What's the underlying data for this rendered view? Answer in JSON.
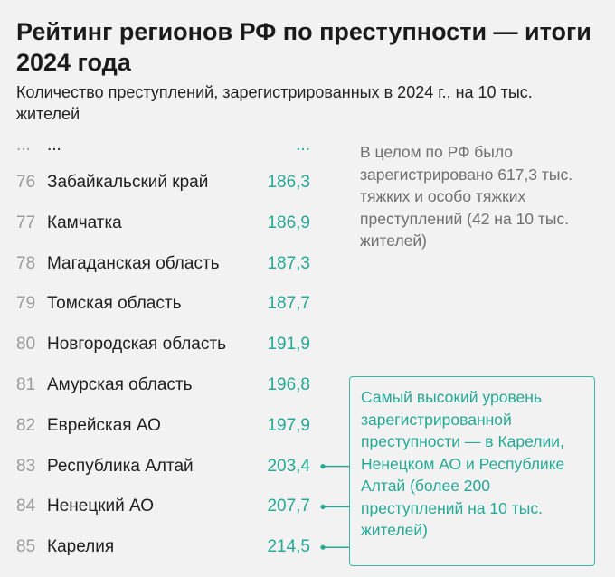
{
  "title": "Рейтинг регионов РФ по преступности — итоги 2024 года",
  "subtitle": "Количество преступлений, зарегистрированных в 2024 г., на 10 тыс. жителей",
  "ellipsis": {
    "rank": "...",
    "region": "...",
    "value": "..."
  },
  "note": "В целом по РФ было зарегистрировано 617,3 тыс. тяжких и особо тяжких преступлений (42 на 10 тыс. жителей)",
  "callout": "Самый высокий уровень зарегистрированной преступности — в Карелии, Ненецком АО и Республике Алтай (более 200 преступлений на 10 тыс. жителей)",
  "colors": {
    "accent": "#25a894",
    "rank": "#9a9a9a",
    "background": "#f2f2f2"
  },
  "chart_data": {
    "type": "table",
    "title": "Рейтинг регионов РФ по преступности — итоги 2024 года",
    "subtitle": "Количество преступлений, зарегистрированных в 2024 г., на 10 тыс. жителей",
    "rows": [
      {
        "rank": "76",
        "region": "Забайкальский край",
        "value": "186,3"
      },
      {
        "rank": "77",
        "region": "Камчатка",
        "value": "186,9"
      },
      {
        "rank": "78",
        "region": "Магаданская область",
        "value": "187,3"
      },
      {
        "rank": "79",
        "region": "Томская область",
        "value": "187,7"
      },
      {
        "rank": "80",
        "region": "Новгородская область",
        "value": "191,9"
      },
      {
        "rank": "81",
        "region": "Амурская область",
        "value": "196,8"
      },
      {
        "rank": "82",
        "region": "Еврейская АО",
        "value": "197,9"
      },
      {
        "rank": "83",
        "region": "Республика Алтай",
        "value": "203,4"
      },
      {
        "rank": "84",
        "region": "Ненецкий АО",
        "value": "207,7"
      },
      {
        "rank": "85",
        "region": "Карелия",
        "value": "214,5"
      }
    ],
    "highlighted": [
      "83",
      "84",
      "85"
    ]
  }
}
